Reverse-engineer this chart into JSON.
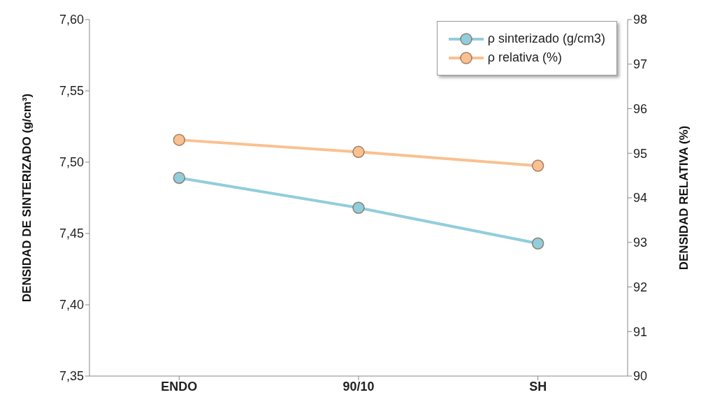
{
  "chart_data": {
    "type": "line",
    "categories": [
      "ENDO",
      "90/10",
      "SH"
    ],
    "series": [
      {
        "name": "ρ sinterizado (g/cm3)",
        "color": "#92cddc",
        "values": [
          7.489,
          7.468,
          7.443
        ]
      },
      {
        "name": "ρ relativa (%)",
        "color": "#fac090",
        "values": [
          95.3,
          95.03,
          94.72
        ],
        "axis": "y2"
      }
    ],
    "ylabel": "DENSIDAD DE SINTERIZADO (g/cm³)",
    "y2label": "DENSIDAD RELATIVA (%)",
    "ylim": [
      7.35,
      7.6
    ],
    "yticks": [
      {
        "value": 7.35,
        "label": "7,35"
      },
      {
        "value": 7.4,
        "label": "7,40"
      },
      {
        "value": 7.45,
        "label": "7,45"
      },
      {
        "value": 7.5,
        "label": "7,50"
      },
      {
        "value": 7.55,
        "label": "7,55"
      },
      {
        "value": 7.6,
        "label": "7,60"
      }
    ],
    "y2lim": [
      90,
      98
    ],
    "y2ticks": [
      90,
      91,
      92,
      93,
      94,
      95,
      96,
      97,
      98
    ],
    "grid": false,
    "legend": "top right",
    "marker": "circle",
    "line_style": "solid"
  }
}
